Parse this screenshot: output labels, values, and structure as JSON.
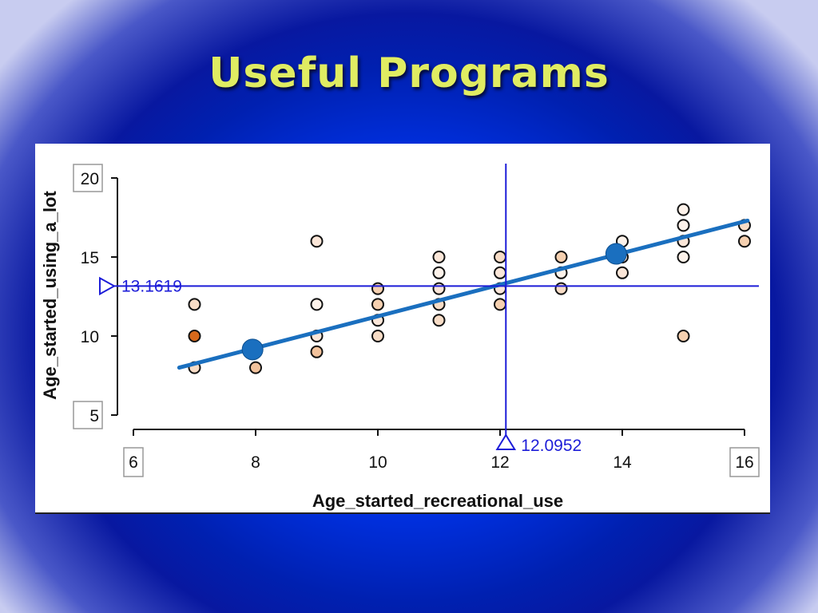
{
  "slide": {
    "title": "Useful Programs"
  },
  "chart_data": {
    "type": "scatter",
    "xlabel": "Age_started_recreational_use",
    "ylabel": "Age_started_using_a_lot",
    "xlim": [
      6,
      16
    ],
    "ylim": [
      5,
      20
    ],
    "x_ticks": [
      "6",
      "8",
      "10",
      "12",
      "14",
      "16"
    ],
    "y_ticks": [
      "5",
      "10",
      "15",
      "20"
    ],
    "points": [
      {
        "x": 7,
        "y": 12,
        "color": "#f7dcc6"
      },
      {
        "x": 7,
        "y": 10,
        "color": "#d8691b"
      },
      {
        "x": 7,
        "y": 8,
        "color": "#f7dcc6"
      },
      {
        "x": 8,
        "y": 8,
        "color": "#f2c29c"
      },
      {
        "x": 9,
        "y": 16,
        "color": "#fbe6d8"
      },
      {
        "x": 9,
        "y": 12,
        "color": "#fdf2ea"
      },
      {
        "x": 9,
        "y": 10,
        "color": "#fbe6d8"
      },
      {
        "x": 9,
        "y": 9,
        "color": "#f2c29c"
      },
      {
        "x": 10,
        "y": 13,
        "color": "#f5d0b0"
      },
      {
        "x": 10,
        "y": 12,
        "color": "#f5d0b0"
      },
      {
        "x": 10,
        "y": 11,
        "color": "#fbe6d8"
      },
      {
        "x": 10,
        "y": 10,
        "color": "#f7dcc6"
      },
      {
        "x": 11,
        "y": 15,
        "color": "#fbe6d8"
      },
      {
        "x": 11,
        "y": 14,
        "color": "#fdf2ea"
      },
      {
        "x": 11,
        "y": 13,
        "color": "#fbe6d8"
      },
      {
        "x": 11,
        "y": 12,
        "color": "#f7dcc6"
      },
      {
        "x": 11,
        "y": 11,
        "color": "#f7dcc6"
      },
      {
        "x": 12,
        "y": 15,
        "color": "#f7dcc6"
      },
      {
        "x": 12,
        "y": 14,
        "color": "#fbe6d8"
      },
      {
        "x": 12,
        "y": 13,
        "color": "#fbe6d8"
      },
      {
        "x": 12,
        "y": 12,
        "color": "#f5d0b0"
      },
      {
        "x": 13,
        "y": 15,
        "color": "#f5d0b0"
      },
      {
        "x": 13,
        "y": 14,
        "color": "#fdf2ea"
      },
      {
        "x": 13,
        "y": 13,
        "color": "#f7dcc6"
      },
      {
        "x": 14,
        "y": 16,
        "color": "#fdf2ea"
      },
      {
        "x": 14,
        "y": 15,
        "color": "#fbe6d8"
      },
      {
        "x": 14,
        "y": 14,
        "color": "#fbe6d8"
      },
      {
        "x": 15,
        "y": 18,
        "color": "#fdf2ea"
      },
      {
        "x": 15,
        "y": 17,
        "color": "#fdf2ea"
      },
      {
        "x": 15,
        "y": 16,
        "color": "#fbe6d8"
      },
      {
        "x": 15,
        "y": 15,
        "color": "#fdf2ea"
      },
      {
        "x": 15,
        "y": 10,
        "color": "#f5d0b0"
      },
      {
        "x": 16,
        "y": 17,
        "color": "#f7dcc6"
      },
      {
        "x": 16,
        "y": 16,
        "color": "#f5d0b0"
      }
    ],
    "fit_line": {
      "color": "#1a6fbf",
      "start": [
        6.75,
        8.0
      ],
      "end": [
        16.05,
        17.3
      ]
    },
    "line_handles": [
      {
        "x": 7.95,
        "y": 9.15
      },
      {
        "x": 13.9,
        "y": 15.2
      }
    ],
    "crosshair": {
      "color": "#1d1dd8",
      "x_value": 12.0952,
      "y_value": 13.1619,
      "x_label": "12.0952",
      "y_label": "13.1619"
    }
  }
}
